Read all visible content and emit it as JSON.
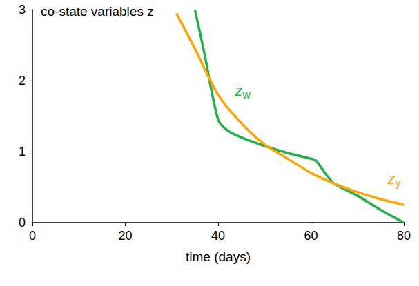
{
  "chart_data": {
    "type": "line",
    "title": "co-state variables z",
    "x_label": "time (days)",
    "xlim": [
      0,
      80
    ],
    "xticks": [
      0,
      20,
      40,
      60,
      80
    ],
    "ylim": [
      0,
      3
    ],
    "yticks": [
      0,
      1,
      2,
      3
    ],
    "grid": false,
    "series": [
      {
        "name": "zw",
        "color": "#22b04b",
        "x": [
          35,
          37,
          40,
          42,
          45,
          50,
          55,
          60,
          61,
          63,
          65,
          70,
          75,
          80
        ],
        "values": [
          3.0,
          2.4,
          1.45,
          1.3,
          1.2,
          1.08,
          0.98,
          0.9,
          0.88,
          0.7,
          0.55,
          0.38,
          0.18,
          0.0
        ]
      },
      {
        "name": "zy",
        "color": "#ffa500",
        "x": [
          31,
          35,
          40,
          45,
          50,
          55,
          60,
          65,
          70,
          75,
          80
        ],
        "values": [
          2.95,
          2.45,
          1.8,
          1.4,
          1.1,
          0.9,
          0.7,
          0.55,
          0.43,
          0.33,
          0.25
        ]
      }
    ]
  }
}
